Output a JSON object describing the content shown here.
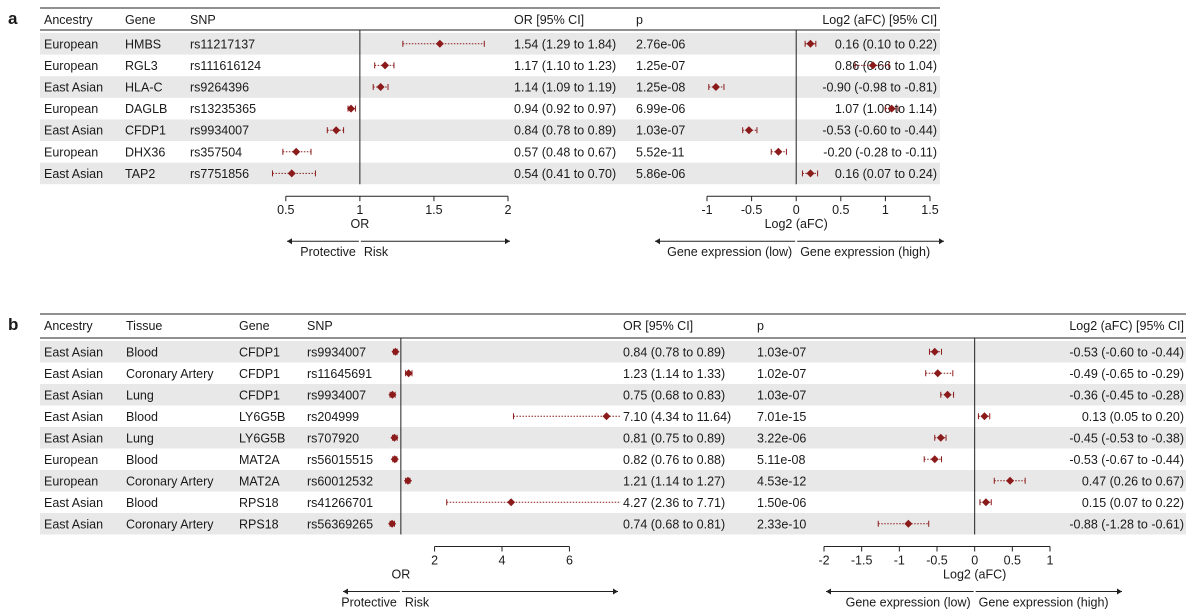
{
  "panel_a": {
    "letter": "a",
    "headers": {
      "ancestry": "Ancestry",
      "gene": "Gene",
      "snp": "SNP",
      "or": "OR [95% CI]",
      "p": "p",
      "aFC": "Log2 (aFC) [95% CI]"
    },
    "or_axis": {
      "xlabel": "OR",
      "ticks": [
        0.5,
        1,
        1.5,
        2
      ],
      "tick_labels": [
        "0.5",
        "1",
        "1.5",
        "2"
      ],
      "xlim": [
        0.4,
        2.0
      ],
      "ref": 1,
      "arrow_left_label": "Protective",
      "arrow_right_label": "Risk"
    },
    "afc_axis": {
      "xlabel": "Log2 (aFC)",
      "ticks": [
        -1,
        -0.5,
        0,
        0.5,
        1,
        1.5
      ],
      "tick_labels": [
        "-1",
        "-0.5",
        "0",
        "0.5",
        "1",
        "1.5"
      ],
      "xlim": [
        -1.0,
        1.5
      ],
      "ref": 0,
      "arrow_left_label": "Gene expression (low)",
      "arrow_right_label": "Gene expression (high)"
    },
    "rows": [
      {
        "ancestry": "European",
        "gene": "HMBS",
        "snp": "rs11217137",
        "or": 1.54,
        "or_lo": 1.29,
        "or_hi": 1.84,
        "or_text": "1.54 (1.29 to 1.84)",
        "p": "2.76e-06",
        "afc": 0.16,
        "afc_lo": 0.1,
        "afc_hi": 0.22,
        "afc_text": "0.16 (0.10 to 0.22)"
      },
      {
        "ancestry": "European",
        "gene": "RGL3",
        "snp": "rs111616124",
        "or": 1.17,
        "or_lo": 1.1,
        "or_hi": 1.23,
        "or_text": "1.17 (1.10 to 1.23)",
        "p": "1.25e-07",
        "afc": 0.86,
        "afc_lo": 0.66,
        "afc_hi": 1.04,
        "afc_text": "0.86 (0.66 to 1.04)"
      },
      {
        "ancestry": "East Asian",
        "gene": "HLA-C",
        "snp": "rs9264396",
        "or": 1.14,
        "or_lo": 1.09,
        "or_hi": 1.19,
        "or_text": "1.14 (1.09 to 1.19)",
        "p": "1.25e-08",
        "afc": -0.9,
        "afc_lo": -0.98,
        "afc_hi": -0.81,
        "afc_text": "-0.90 (-0.98 to -0.81)"
      },
      {
        "ancestry": "European",
        "gene": "DAGLB",
        "snp": "rs13235365",
        "or": 0.94,
        "or_lo": 0.92,
        "or_hi": 0.97,
        "or_text": "0.94 (0.92 to 0.97)",
        "p": "6.99e-06",
        "afc": 1.07,
        "afc_lo": 1.0,
        "afc_hi": 1.14,
        "afc_text": "1.07 (1.00 to 1.14)"
      },
      {
        "ancestry": "East Asian",
        "gene": "CFDP1",
        "snp": "rs9934007",
        "or": 0.84,
        "or_lo": 0.78,
        "or_hi": 0.89,
        "or_text": "0.84 (0.78 to 0.89)",
        "p": "1.03e-07",
        "afc": -0.53,
        "afc_lo": -0.6,
        "afc_hi": -0.44,
        "afc_text": "-0.53 (-0.60 to -0.44)"
      },
      {
        "ancestry": "European",
        "gene": "DHX36",
        "snp": "rs357504",
        "or": 0.57,
        "or_lo": 0.48,
        "or_hi": 0.67,
        "or_text": "0.57 (0.48 to 0.67)",
        "p": "5.52e-11",
        "afc": -0.2,
        "afc_lo": -0.28,
        "afc_hi": -0.11,
        "afc_text": "-0.20 (-0.28 to -0.11)"
      },
      {
        "ancestry": "East Asian",
        "gene": "TAP2",
        "snp": "rs7751856",
        "or": 0.54,
        "or_lo": 0.41,
        "or_hi": 0.7,
        "or_text": "0.54 (0.41 to 0.70)",
        "p": "5.86e-06",
        "afc": 0.16,
        "afc_lo": 0.07,
        "afc_hi": 0.24,
        "afc_text": "0.16 (0.07 to 0.24)"
      }
    ]
  },
  "panel_b": {
    "letter": "b",
    "headers": {
      "ancestry": "Ancestry",
      "tissue": "Tissue",
      "gene": "Gene",
      "snp": "SNP",
      "or": "OR [95% CI]",
      "p": "p",
      "aFC": "Log2 (aFC) [95% CI]"
    },
    "or_axis": {
      "xlabel": "OR",
      "ticks": [
        2,
        4,
        6
      ],
      "tick_labels": [
        "2",
        "4",
        "6"
      ],
      "xlim": [
        0.5,
        7.5
      ],
      "ref": 1,
      "arrow_left_label": "Protective",
      "arrow_right_label": "Risk"
    },
    "afc_axis": {
      "xlabel": "Log2 (aFC)",
      "ticks": [
        -2,
        -1.5,
        -1,
        -0.5,
        0,
        0.5,
        1
      ],
      "tick_labels": [
        "-2",
        "-1.5",
        "-1",
        "-0.5",
        "0",
        "0.5",
        "1"
      ],
      "xlim": [
        -2.0,
        1.0
      ],
      "ref": 0,
      "arrow_left_label": "Gene expression (low)",
      "arrow_right_label": "Gene expression (high)"
    },
    "rows": [
      {
        "ancestry": "East Asian",
        "tissue": "Blood",
        "gene": "CFDP1",
        "snp": "rs9934007",
        "or": 0.84,
        "or_lo": 0.78,
        "or_hi": 0.89,
        "or_text": "0.84 (0.78 to 0.89)",
        "p": "1.03e-07",
        "afc": -0.53,
        "afc_lo": -0.6,
        "afc_hi": -0.44,
        "afc_text": "-0.53 (-0.60 to -0.44)"
      },
      {
        "ancestry": "East Asian",
        "tissue": "Coronary Artery",
        "gene": "CFDP1",
        "snp": "rs11645691",
        "or": 1.23,
        "or_lo": 1.14,
        "or_hi": 1.33,
        "or_text": "1.23 (1.14 to 1.33)",
        "p": "1.02e-07",
        "afc": -0.49,
        "afc_lo": -0.65,
        "afc_hi": -0.29,
        "afc_text": "-0.49 (-0.65 to -0.29)"
      },
      {
        "ancestry": "East Asian",
        "tissue": "Lung",
        "gene": "CFDP1",
        "snp": "rs9934007",
        "or": 0.75,
        "or_lo": 0.68,
        "or_hi": 0.83,
        "or_text": "0.75 (0.68 to 0.83)",
        "p": "1.03e-07",
        "afc": -0.36,
        "afc_lo": -0.45,
        "afc_hi": -0.28,
        "afc_text": "-0.36 (-0.45 to -0.28)"
      },
      {
        "ancestry": "East Asian",
        "tissue": "Blood",
        "gene": "LY6G5B",
        "snp": "rs204999",
        "or": 7.1,
        "or_lo": 4.34,
        "or_hi": 11.64,
        "or_text": "7.10 (4.34 to 11.64)",
        "p": "7.01e-15",
        "afc": 0.13,
        "afc_lo": 0.05,
        "afc_hi": 0.2,
        "afc_text": "0.13 (0.05 to 0.20)"
      },
      {
        "ancestry": "East Asian",
        "tissue": "Lung",
        "gene": "LY6G5B",
        "snp": "rs707920",
        "or": 0.81,
        "or_lo": 0.75,
        "or_hi": 0.89,
        "or_text": "0.81 (0.75 to 0.89)",
        "p": "3.22e-06",
        "afc": -0.45,
        "afc_lo": -0.53,
        "afc_hi": -0.38,
        "afc_text": "-0.45 (-0.53 to -0.38)"
      },
      {
        "ancestry": "European",
        "tissue": "Blood",
        "gene": "MAT2A",
        "snp": "rs56015515",
        "or": 0.82,
        "or_lo": 0.76,
        "or_hi": 0.88,
        "or_text": "0.82 (0.76 to 0.88)",
        "p": "5.11e-08",
        "afc": -0.53,
        "afc_lo": -0.67,
        "afc_hi": -0.44,
        "afc_text": "-0.53 (-0.67 to -0.44)"
      },
      {
        "ancestry": "European",
        "tissue": "Coronary Artery",
        "gene": "MAT2A",
        "snp": "rs60012532",
        "or": 1.21,
        "or_lo": 1.14,
        "or_hi": 1.27,
        "or_text": "1.21 (1.14 to 1.27)",
        "p": "4.53e-12",
        "afc": 0.47,
        "afc_lo": 0.26,
        "afc_hi": 0.67,
        "afc_text": "0.47 (0.26 to 0.67)"
      },
      {
        "ancestry": "East Asian",
        "tissue": "Blood",
        "gene": "RPS18",
        "snp": "rs41266701",
        "or": 4.27,
        "or_lo": 2.36,
        "or_hi": 7.71,
        "or_text": "4.27 (2.36 to 7.71)",
        "p": "1.50e-06",
        "afc": 0.15,
        "afc_lo": 0.07,
        "afc_hi": 0.22,
        "afc_text": "0.15 (0.07 to 0.22)"
      },
      {
        "ancestry": "East Asian",
        "tissue": "Coronary Artery",
        "gene": "RPS18",
        "snp": "rs56369265",
        "or": 0.74,
        "or_lo": 0.68,
        "or_hi": 0.81,
        "or_text": "0.74 (0.68 to 0.81)",
        "p": "2.33e-10",
        "afc": -0.88,
        "afc_lo": -1.28,
        "afc_hi": -0.61,
        "afc_text": "-0.88 (-1.28 to -0.61)"
      }
    ]
  },
  "colors": {
    "point": "#8b1a1a",
    "stripe": "#e8e8e8",
    "line": "#222222",
    "text": "#1a1a1a"
  },
  "chart_data": [
    {
      "type": "forest",
      "panel": "a",
      "xlabel": "OR",
      "xlim": [
        0.4,
        2.0
      ],
      "categories": [
        "HMBS rs11217137",
        "RGL3 rs111616124",
        "HLA-C rs9264396",
        "DAGLB rs13235365",
        "CFDP1 rs9934007",
        "DHX36 rs357504",
        "TAP2 rs7751856"
      ],
      "values": [
        1.54,
        1.17,
        1.14,
        0.94,
        0.84,
        0.57,
        0.54
      ],
      "lower": [
        1.29,
        1.1,
        1.09,
        0.92,
        0.78,
        0.48,
        0.41
      ],
      "upper": [
        1.84,
        1.23,
        1.19,
        0.97,
        0.89,
        0.67,
        0.7
      ]
    },
    {
      "type": "forest",
      "panel": "a",
      "xlabel": "Log2 (aFC)",
      "xlim": [
        -1.0,
        1.5
      ],
      "categories": [
        "HMBS rs11217137",
        "RGL3 rs111616124",
        "HLA-C rs9264396",
        "DAGLB rs13235365",
        "CFDP1 rs9934007",
        "DHX36 rs357504",
        "TAP2 rs7751856"
      ],
      "values": [
        0.16,
        0.86,
        -0.9,
        1.07,
        -0.53,
        -0.2,
        0.16
      ],
      "lower": [
        0.1,
        0.66,
        -0.98,
        1.0,
        -0.6,
        -0.28,
        0.07
      ],
      "upper": [
        0.22,
        1.04,
        -0.81,
        1.14,
        -0.44,
        -0.11,
        0.24
      ]
    },
    {
      "type": "forest",
      "panel": "b",
      "xlabel": "OR",
      "xlim": [
        0.5,
        7.5
      ],
      "categories": [
        "CFDP1 Blood",
        "CFDP1 Coronary Artery",
        "CFDP1 Lung",
        "LY6G5B Blood",
        "LY6G5B Lung",
        "MAT2A Blood",
        "MAT2A Coronary Artery",
        "RPS18 Blood",
        "RPS18 Coronary Artery"
      ],
      "values": [
        0.84,
        1.23,
        0.75,
        7.1,
        0.81,
        0.82,
        1.21,
        4.27,
        0.74
      ],
      "lower": [
        0.78,
        1.14,
        0.68,
        4.34,
        0.75,
        0.76,
        1.14,
        2.36,
        0.68
      ],
      "upper": [
        0.89,
        1.33,
        0.83,
        11.64,
        0.89,
        0.88,
        1.27,
        7.71,
        0.81
      ]
    },
    {
      "type": "forest",
      "panel": "b",
      "xlabel": "Log2 (aFC)",
      "xlim": [
        -2.0,
        1.0
      ],
      "categories": [
        "CFDP1 Blood",
        "CFDP1 Coronary Artery",
        "CFDP1 Lung",
        "LY6G5B Blood",
        "LY6G5B Lung",
        "MAT2A Blood",
        "MAT2A Coronary Artery",
        "RPS18 Blood",
        "RPS18 Coronary Artery"
      ],
      "values": [
        -0.53,
        -0.49,
        -0.36,
        0.13,
        -0.45,
        -0.53,
        0.47,
        0.15,
        -0.88
      ],
      "lower": [
        -0.6,
        -0.65,
        -0.45,
        0.05,
        -0.53,
        -0.67,
        0.26,
        0.07,
        -1.28
      ],
      "upper": [
        -0.44,
        -0.29,
        -0.28,
        0.2,
        -0.38,
        -0.44,
        0.67,
        0.22,
        -0.61
      ]
    }
  ]
}
